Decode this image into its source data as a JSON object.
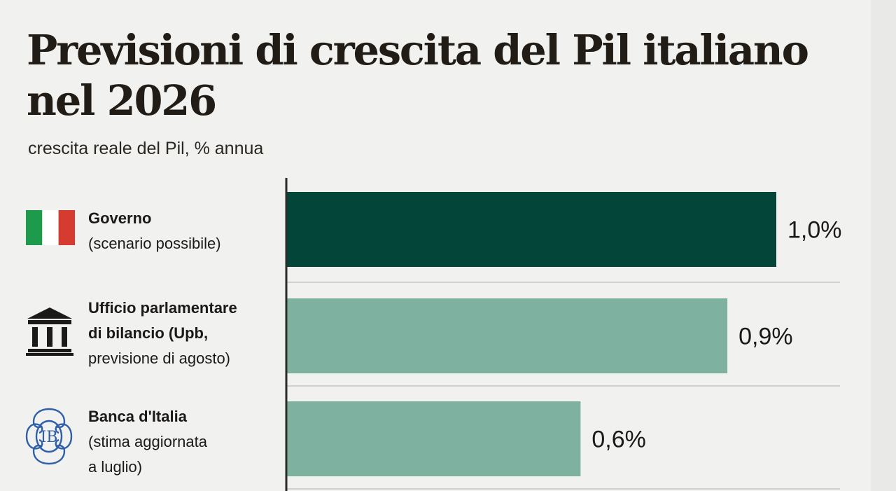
{
  "title": "Previsioni di crescita del Pil italiano nel 2026",
  "subtitle": "crescita reale del Pil, % annua",
  "rows": [
    {
      "name_line": "Governo",
      "detail_lines": [
        "(scenario possibile)"
      ],
      "icon": "italy-flag-icon",
      "value_label": "1,0%"
    },
    {
      "name_lines": [
        "Ufficio parlamentare",
        "di bilancio (Upb,"
      ],
      "detail_lines": [
        "previsione di agosto)"
      ],
      "icon": "parliament-building-icon",
      "value_label": "0,9%"
    },
    {
      "name_line": "Banca d'Italia",
      "detail_lines": [
        "(stima aggiornata",
        "a luglio)"
      ],
      "icon": "bank-of-italy-logo-icon",
      "value_label": "0,6%"
    }
  ],
  "colors": {
    "background": "#f1f1ef",
    "highlight_bar": "#04453a",
    "bar": "#7fb1a0",
    "axis": "#2b2b2b",
    "separator": "#bdbdbd",
    "flag_green": "#1e9a4d",
    "flag_white": "#ffffff",
    "flag_red": "#d63b2f",
    "logo_blue": "#2f5faa"
  },
  "chart_data": {
    "type": "bar",
    "orientation": "horizontal",
    "title": "Previsioni di crescita del Pil italiano nel 2026",
    "subtitle": "crescita reale del Pil, % annua",
    "categories": [
      "Governo (scenario possibile)",
      "Ufficio parlamentare di bilancio (Upb, previsione di agosto)",
      "Banca d'Italia (stima aggiornata a luglio)"
    ],
    "values": [
      1.0,
      0.9,
      0.6
    ],
    "data_labels": [
      "1,0%",
      "0,9%",
      "0,6%"
    ],
    "highlight_index": 0,
    "xlim": [
      0,
      1.0
    ],
    "grid": false,
    "legend": "none"
  }
}
